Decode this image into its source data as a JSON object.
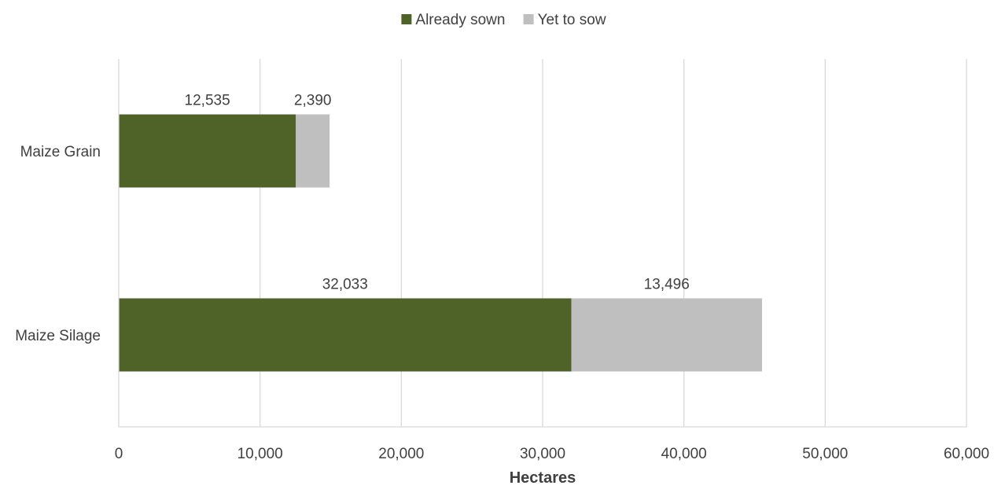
{
  "chart_data": {
    "type": "bar",
    "orientation": "horizontal",
    "stacked": true,
    "categories": [
      "Maize Grain",
      "Maize Silage"
    ],
    "series": [
      {
        "name": "Already sown",
        "values": [
          12535,
          32033
        ],
        "labels": [
          "12,535",
          "32,033"
        ],
        "color": "#4f6228"
      },
      {
        "name": "Yet to sow",
        "values": [
          2390,
          13496
        ],
        "labels": [
          "2,390",
          "13,496"
        ],
        "color": "#bfbfbf"
      }
    ],
    "xlabel": "Hectares",
    "ylabel": "",
    "title": "",
    "xlim": [
      0,
      60000
    ],
    "xticks": [
      0,
      10000,
      20000,
      30000,
      40000,
      50000,
      60000
    ],
    "xtick_labels": [
      "0",
      "10,000",
      "20,000",
      "30,000",
      "40,000",
      "50,000",
      "60,000"
    ],
    "legend_position": "top-center",
    "grid": "vertical"
  }
}
